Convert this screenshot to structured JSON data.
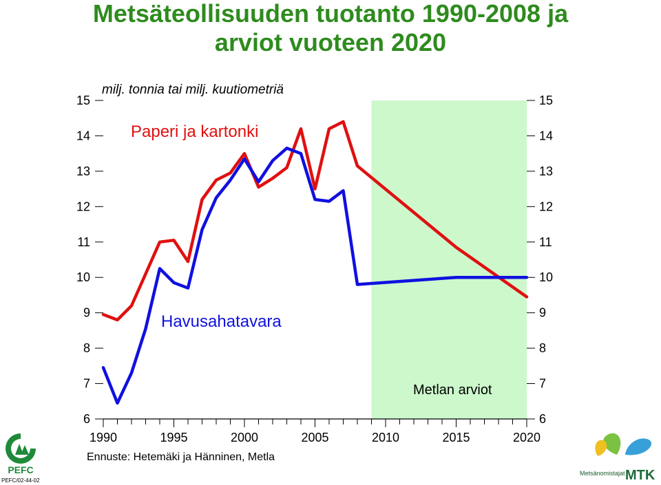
{
  "title": {
    "line1": "Metsäteollisuuden tuotanto 1990-2008 ja",
    "line2": "arviot vuoteen 2020"
  },
  "chart_data": {
    "type": "line",
    "title": "Metsäteollisuuden tuotanto 1990-2008 ja arviot vuoteen 2020",
    "ylabel": "milj. tonnia tai milj. kuutiometriä",
    "ylim": [
      6,
      15
    ],
    "xlim": [
      1990,
      2020
    ],
    "x_ticks": [
      "1990",
      "1995",
      "2000",
      "2005",
      "2010",
      "2015",
      "2020"
    ],
    "y_ticks": [
      "6",
      "7",
      "8",
      "9",
      "10",
      "11",
      "12",
      "13",
      "14",
      "15"
    ],
    "forecast_region": {
      "from": 2009,
      "to": 2020,
      "label": "Metlan arviot",
      "color": "#ccf8cc"
    },
    "series": [
      {
        "name": "Paperi ja kartonki",
        "color": "#e01010",
        "x": [
          1990,
          1991,
          1992,
          1993,
          1994,
          1995,
          1996,
          1997,
          1998,
          1999,
          2000,
          2001,
          2002,
          2003,
          2004,
          2005,
          2006,
          2007,
          2008,
          2015,
          2020
        ],
        "y": [
          8.95,
          8.8,
          9.2,
          10.1,
          11.0,
          11.05,
          10.45,
          12.2,
          12.75,
          12.95,
          13.5,
          12.55,
          12.8,
          13.1,
          14.2,
          12.5,
          14.2,
          14.4,
          13.15,
          10.85,
          9.45
        ]
      },
      {
        "name": "Havusahatavara",
        "color": "#1010e0",
        "x": [
          1990,
          1991,
          1992,
          1993,
          1994,
          1995,
          1996,
          1997,
          1998,
          1999,
          2000,
          2001,
          2002,
          2003,
          2004,
          2005,
          2006,
          2007,
          2008,
          2015,
          2020
        ],
        "y": [
          7.45,
          6.45,
          7.3,
          8.55,
          10.25,
          9.85,
          9.7,
          11.35,
          12.25,
          12.75,
          13.35,
          12.7,
          13.3,
          13.65,
          13.5,
          12.2,
          12.15,
          12.45,
          9.8,
          10.0,
          10.0
        ]
      }
    ],
    "source": "Ennuste: Hetemäki ja Hänninen, Metla"
  },
  "logos": {
    "pefc_text": "PEFC",
    "pefc_code": "PEFC/02-44-02",
    "mtk_text": "MTK",
    "mtk_sub": "Metsänomistajat"
  }
}
